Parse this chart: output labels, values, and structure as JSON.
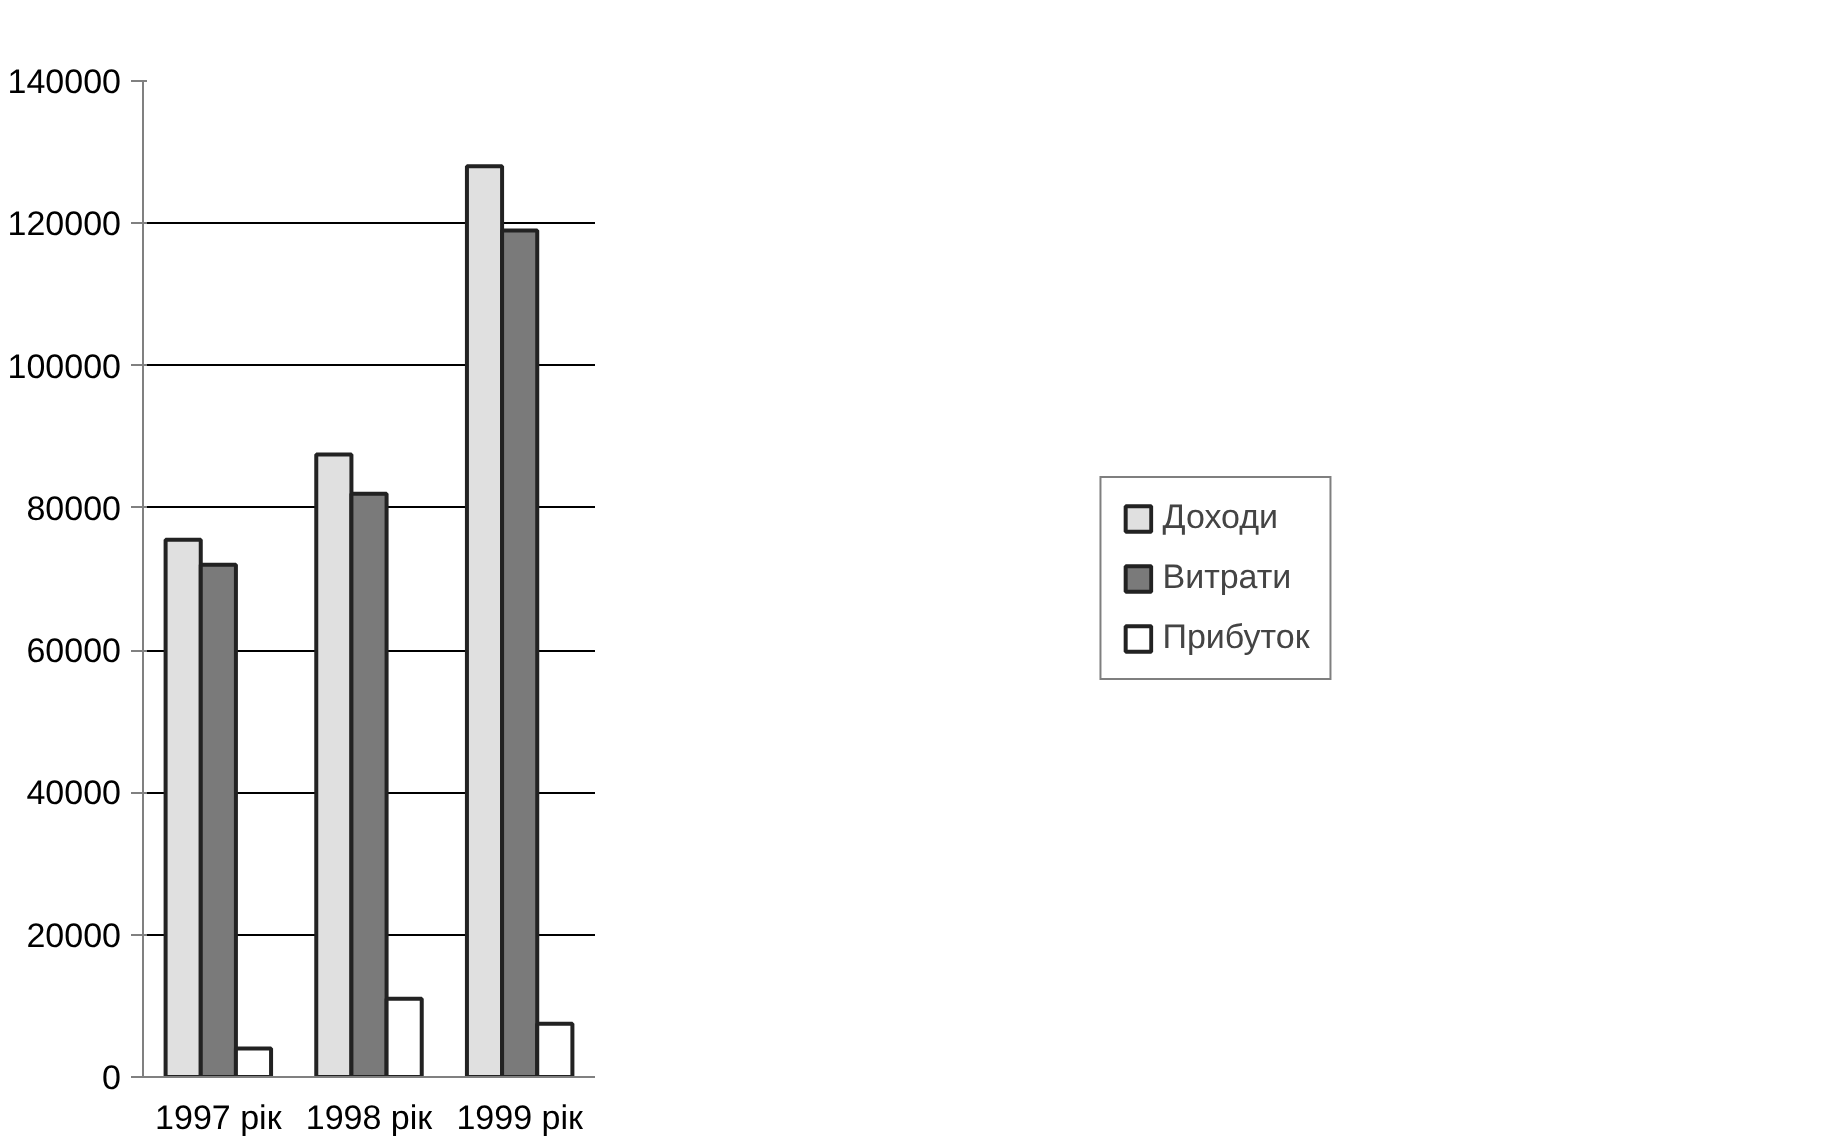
{
  "chart_data": {
    "type": "bar",
    "categories": [
      "1997 рік",
      "1998 рік",
      "1999 рік"
    ],
    "series": [
      {
        "name": "Доходи",
        "color": "#e0e0e0",
        "values": [
          75500,
          87500,
          128000
        ]
      },
      {
        "name": "Витрати",
        "color": "#7a7a7a",
        "values": [
          72000,
          82000,
          119000
        ]
      },
      {
        "name": "Прибуток",
        "color": "#ffffff",
        "values": [
          4000,
          11000,
          7500
        ]
      }
    ],
    "ylim": [
      0,
      140000
    ],
    "yticks": [
      0,
      20000,
      40000,
      60000,
      80000,
      100000,
      120000,
      140000
    ],
    "grid": "y",
    "legend": "right"
  }
}
